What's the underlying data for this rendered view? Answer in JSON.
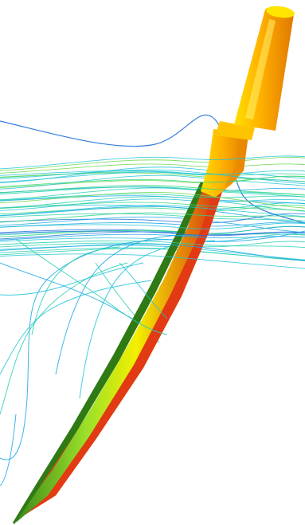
{
  "image": {
    "kind": "cfd-flow-visualization",
    "background_color": "#ffffff",
    "structure_colors": [
      "#fff200",
      "#ffb000",
      "#f08000",
      "#e03a10",
      "#5ec020",
      "#2a6e12"
    ],
    "streamline_colors": [
      "#1f6fd8",
      "#1aa7e6",
      "#22c4d8",
      "#27d0b0",
      "#32d680",
      "#6ad84a"
    ]
  }
}
